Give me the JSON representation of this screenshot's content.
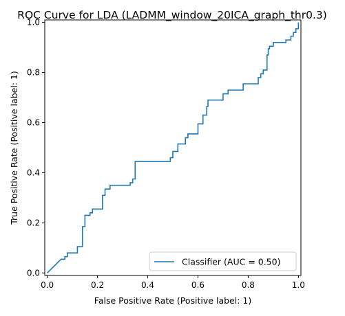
{
  "chart_data": {
    "type": "line",
    "title": "ROC Curve for LDA (LADMM_window_20ICA_graph_thr0.3)",
    "xlabel": "False Positive Rate (Positive label: 1)",
    "ylabel": "True Positive Rate (Positive label: 1)",
    "xlim": [
      -0.01,
      1.01
    ],
    "ylim": [
      -0.01,
      1.01
    ],
    "xticks": [
      "0.0",
      "0.2",
      "0.4",
      "0.6",
      "0.8",
      "1.0"
    ],
    "yticks": [
      "0.0",
      "0.2",
      "0.4",
      "0.6",
      "0.8",
      "1.0"
    ],
    "grid": false,
    "legend_position": "lower right",
    "series": [
      {
        "name": "Classifier (AUC = 0.50)",
        "color": "#1f77b4",
        "x": [
          0.0,
          0.055,
          0.07,
          0.07,
          0.08,
          0.08,
          0.12,
          0.12,
          0.14,
          0.14,
          0.15,
          0.15,
          0.17,
          0.17,
          0.18,
          0.18,
          0.22,
          0.22,
          0.23,
          0.23,
          0.25,
          0.25,
          0.33,
          0.33,
          0.34,
          0.34,
          0.35,
          0.35,
          0.49,
          0.49,
          0.5,
          0.5,
          0.52,
          0.52,
          0.55,
          0.55,
          0.56,
          0.56,
          0.6,
          0.6,
          0.62,
          0.62,
          0.635,
          0.635,
          0.64,
          0.64,
          0.7,
          0.7,
          0.72,
          0.72,
          0.78,
          0.78,
          0.84,
          0.84,
          0.85,
          0.85,
          0.86,
          0.86,
          0.875,
          0.875,
          0.88,
          0.88,
          0.885,
          0.885,
          0.9,
          0.9,
          0.95,
          0.95,
          0.97,
          0.97,
          0.98,
          0.98,
          0.99,
          0.99,
          1.0,
          1.0
        ],
        "y": [
          0.0,
          0.055,
          0.055,
          0.065,
          0.065,
          0.08,
          0.08,
          0.105,
          0.105,
          0.185,
          0.185,
          0.23,
          0.23,
          0.24,
          0.24,
          0.255,
          0.255,
          0.31,
          0.31,
          0.335,
          0.335,
          0.35,
          0.35,
          0.36,
          0.36,
          0.375,
          0.375,
          0.445,
          0.445,
          0.46,
          0.46,
          0.485,
          0.485,
          0.515,
          0.515,
          0.54,
          0.54,
          0.555,
          0.555,
          0.595,
          0.595,
          0.63,
          0.63,
          0.665,
          0.665,
          0.69,
          0.69,
          0.715,
          0.715,
          0.73,
          0.73,
          0.755,
          0.755,
          0.78,
          0.78,
          0.795,
          0.795,
          0.81,
          0.81,
          0.87,
          0.87,
          0.895,
          0.895,
          0.905,
          0.905,
          0.92,
          0.92,
          0.93,
          0.93,
          0.945,
          0.945,
          0.96,
          0.96,
          0.975,
          0.975,
          1.0
        ]
      }
    ]
  }
}
